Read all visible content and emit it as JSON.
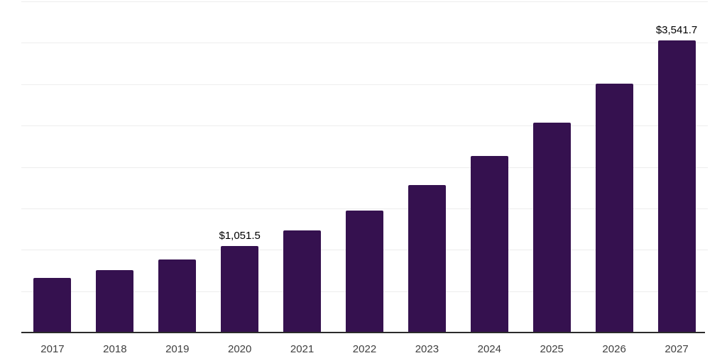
{
  "chart_data": {
    "type": "bar",
    "title": "",
    "xlabel": "",
    "ylabel": "",
    "categories": [
      "2017",
      "2018",
      "2019",
      "2020",
      "2021",
      "2022",
      "2023",
      "2024",
      "2025",
      "2026",
      "2027"
    ],
    "values": [
      665,
      760,
      887,
      1051.5,
      1246,
      1485,
      1792,
      2142,
      2543,
      3013,
      3541.7
    ],
    "value_labels": [
      "",
      "",
      "",
      "$1,051.5",
      "",
      "",
      "",
      "",
      "",
      "",
      "$3,541.7"
    ],
    "ylim": [
      0,
      4000
    ],
    "grid_step": 500,
    "grid": "horizontal",
    "legend": "none",
    "styles": {
      "bar_color": "#35114F",
      "gridline_color": "#ededed",
      "axis_color": "#2b2b2b",
      "tick_label_color": "#404040",
      "value_label_color": "#000000",
      "background": "#ffffff"
    }
  }
}
